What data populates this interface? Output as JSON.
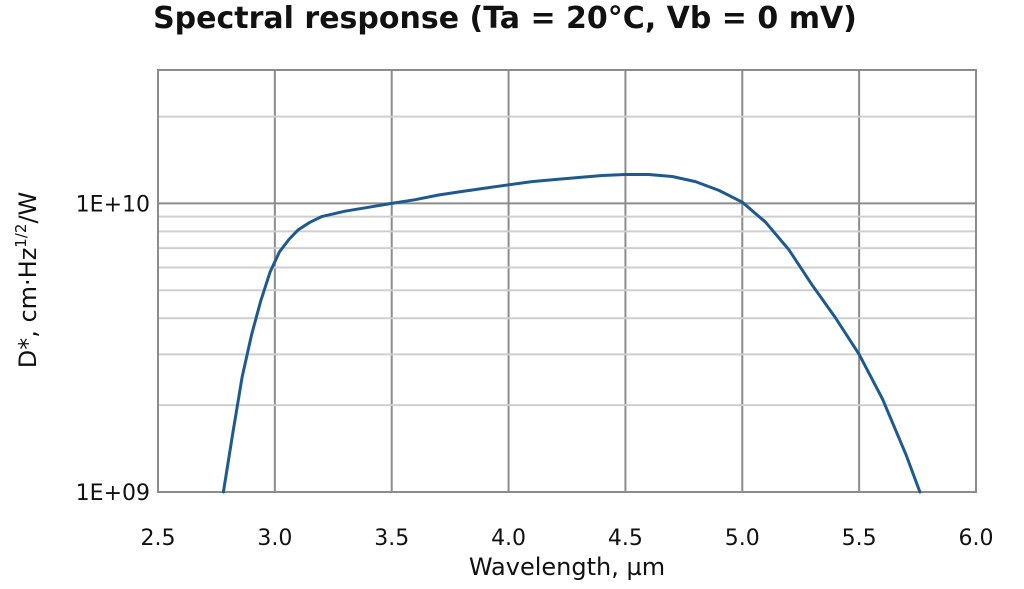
{
  "chart_data": {
    "type": "line",
    "title": "Spectral response (Ta = 20°C, Vb = 0 mV)",
    "xlabel": "Wavelength, µm",
    "ylabel_main": "D*, cm·Hz",
    "ylabel_sup": "1/2",
    "ylabel_tail": "/W",
    "y_scale": "log",
    "xlim": [
      2.5,
      6.0
    ],
    "ylim": [
      1000000000.0,
      29000000000.0
    ],
    "x_tick_labels": [
      "2.5",
      "3.0",
      "3.5",
      "4.0",
      "4.5",
      "5.0",
      "5.5",
      "6.0"
    ],
    "y_tick_labels": [
      "1E+09",
      "1E+10"
    ],
    "grid": true,
    "line_color": "#1f5a8e",
    "series": [
      {
        "x": [
          2.78,
          2.82,
          2.86,
          2.9,
          2.94,
          2.98,
          3.02,
          3.06,
          3.1,
          3.15,
          3.2,
          3.3,
          3.4,
          3.5,
          3.6,
          3.7,
          3.8,
          3.9,
          4.0,
          4.1,
          4.2,
          4.3,
          4.4,
          4.5,
          4.6,
          4.7,
          4.8,
          4.9,
          5.0,
          5.1,
          5.2,
          5.3,
          5.4,
          5.5,
          5.6,
          5.7,
          5.76
        ],
        "y": [
          1000000000.0,
          1600000000.0,
          2500000000.0,
          3500000000.0,
          4600000000.0,
          5800000000.0,
          6800000000.0,
          7500000000.0,
          8100000000.0,
          8600000000.0,
          9000000000.0,
          9400000000.0,
          9700000000.0,
          10000000000.0,
          10300000000.0,
          10700000000.0,
          11000000000.0,
          11300000000.0,
          11600000000.0,
          11900000000.0,
          12100000000.0,
          12300000000.0,
          12500000000.0,
          12600000000.0,
          12600000000.0,
          12400000000.0,
          11900000000.0,
          11100000000.0,
          10100000000.0,
          8600000000.0,
          6900000000.0,
          5200000000.0,
          4000000000.0,
          3000000000.0,
          2100000000.0,
          1350000000.0,
          1000000000.0
        ]
      }
    ]
  }
}
